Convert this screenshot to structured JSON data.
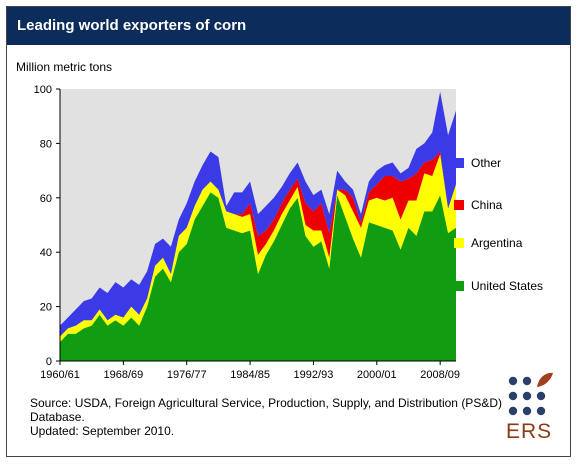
{
  "title": "Leading world exporters of corn",
  "colors": {
    "header_bg": "#0c2c5b",
    "plot_bg": "#e1e1e1",
    "united_states": "#119d11",
    "argentina": "#ffff00",
    "china": "#ee0000",
    "other": "#3a3ae6"
  },
  "chart_data": {
    "type": "area",
    "stacked": true,
    "title": "Leading world exporters of corn",
    "ylabel": "Million metric tons",
    "ylim": [
      0,
      100
    ],
    "yticks": [
      0,
      20,
      40,
      60,
      80,
      100
    ],
    "x_tick_labels": [
      "1960/61",
      "1968/69",
      "1976/77",
      "1984/85",
      "1992/93",
      "2000/01",
      "2008/09"
    ],
    "x": [
      "1960/61",
      "1961/62",
      "1962/63",
      "1963/64",
      "1964/65",
      "1965/66",
      "1966/67",
      "1967/68",
      "1968/69",
      "1969/70",
      "1970/71",
      "1971/72",
      "1972/73",
      "1973/74",
      "1974/75",
      "1975/76",
      "1976/77",
      "1977/78",
      "1978/79",
      "1979/80",
      "1980/81",
      "1981/82",
      "1982/83",
      "1983/84",
      "1984/85",
      "1985/86",
      "1986/87",
      "1987/88",
      "1988/89",
      "1989/90",
      "1990/91",
      "1991/92",
      "1992/93",
      "1993/94",
      "1994/95",
      "1995/96",
      "1996/97",
      "1997/98",
      "1998/99",
      "1999/00",
      "2000/01",
      "2001/02",
      "2002/03",
      "2003/04",
      "2004/05",
      "2005/06",
      "2006/07",
      "2007/08",
      "2008/09",
      "2009/10",
      "2010/11"
    ],
    "series": [
      {
        "name": "United States",
        "values": [
          7,
          10,
          10,
          12,
          13,
          17,
          13,
          15,
          13,
          16,
          13,
          20,
          31,
          34,
          29,
          40,
          43,
          52,
          57,
          62,
          60,
          49,
          48,
          47,
          48,
          32,
          39,
          44,
          50,
          56,
          60,
          46,
          42,
          44,
          34,
          61,
          53,
          45,
          38,
          51,
          50,
          49,
          48,
          41,
          49,
          46,
          55,
          55,
          61,
          47,
          49
        ]
      },
      {
        "name": "Argentina",
        "values": [
          2,
          2,
          3,
          3,
          2,
          2,
          2,
          2,
          3,
          4,
          4,
          3,
          4,
          4,
          3,
          6,
          6,
          5,
          6,
          4,
          3,
          6,
          6,
          6,
          6,
          7,
          4,
          4,
          4,
          3,
          4,
          4,
          6,
          4,
          4,
          2,
          8,
          10,
          11,
          8,
          10,
          10,
          12,
          11,
          10,
          13,
          14,
          13,
          15,
          9,
          16
        ]
      },
      {
        "name": "China",
        "values": [
          0,
          0,
          0,
          0,
          0,
          0,
          0,
          0,
          0,
          0,
          0,
          0,
          0,
          0,
          0,
          0,
          0,
          0,
          0,
          0,
          0,
          0,
          0,
          1,
          4,
          7,
          5,
          4,
          4,
          4,
          3,
          8,
          7,
          10,
          9,
          0,
          2,
          5,
          2,
          3,
          5,
          9,
          8,
          14,
          8,
          10,
          4,
          6,
          1,
          0,
          0
        ]
      },
      {
        "name": "Other",
        "values": [
          4,
          4,
          6,
          7,
          8,
          8,
          10,
          12,
          11,
          10,
          11,
          10,
          8,
          7,
          10,
          6,
          9,
          9,
          9,
          11,
          12,
          2,
          8,
          8,
          8,
          8,
          9,
          8,
          6,
          6,
          6,
          8,
          6,
          5,
          7,
          7,
          3,
          3,
          3,
          4,
          5,
          4,
          5,
          3,
          4,
          9,
          7,
          10,
          22,
          27,
          27
        ]
      }
    ],
    "legend_position": "right",
    "legend_entries": [
      "Other",
      "China",
      "Argentina",
      "United States"
    ],
    "grid": false
  },
  "source": {
    "line1": "Source: USDA, Foreign Agricultural Service, Production, Supply, and Distribution (PS&D) Database.",
    "line2": "Updated: September 2010."
  },
  "logo": {
    "text": "ERS"
  }
}
